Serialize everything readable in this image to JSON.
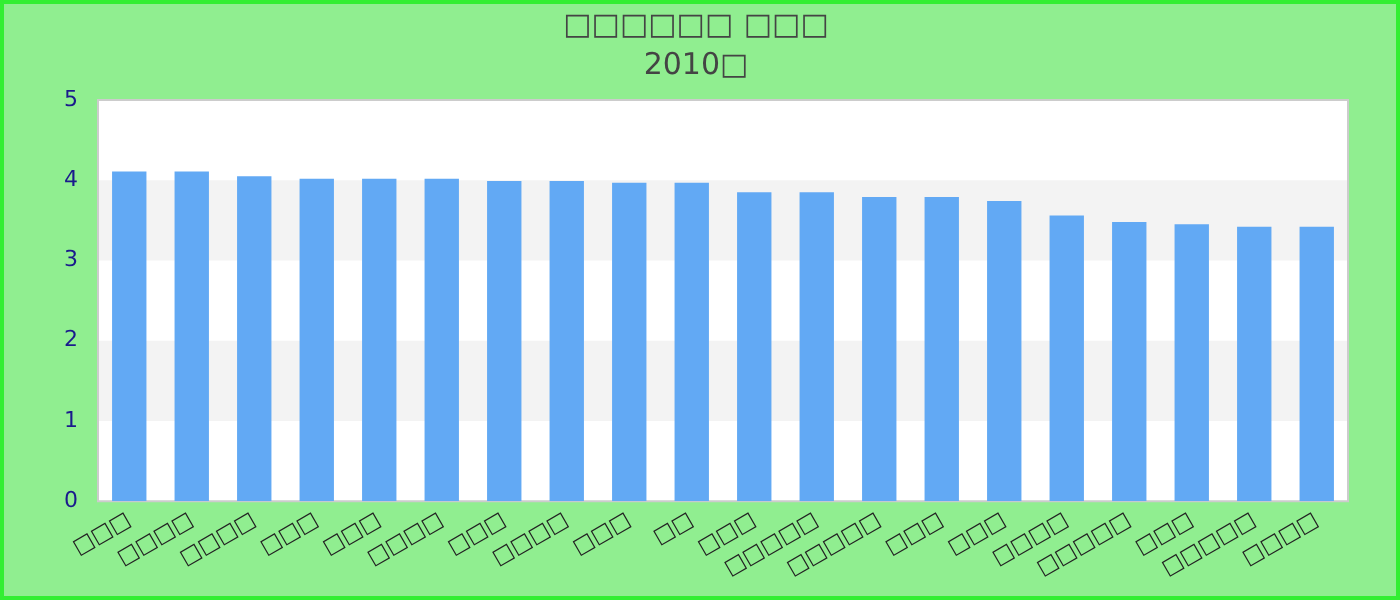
{
  "chart_data": {
    "type": "bar",
    "title": "□□□□□□ □□□",
    "subtitle": "2010□",
    "categories": [
      "□□□",
      "□□□□",
      "□□□□",
      "□□□",
      "□□□",
      "□□□□",
      "□□□",
      "□□□□",
      "□□□",
      "□□",
      "□□□",
      "□□□□□",
      "□□□□□",
      "□□□",
      "□□□",
      "□□□□",
      "□□□□□",
      "□□□",
      "□□□□□",
      "□□□□"
    ],
    "values": [
      4.11,
      4.11,
      4.05,
      4.02,
      4.02,
      4.02,
      3.99,
      3.99,
      3.97,
      3.97,
      3.85,
      3.85,
      3.79,
      3.79,
      3.74,
      3.56,
      3.48,
      3.45,
      3.42,
      3.42
    ],
    "color": "#62a9f4",
    "ylim": [
      0,
      5
    ],
    "yticks": [
      0,
      1,
      2,
      3,
      4,
      5
    ],
    "grid": false,
    "legend": false,
    "bands": [
      {
        "axis": "y",
        "from": 1,
        "to": 2,
        "color": "#f3f3f3"
      },
      {
        "axis": "y",
        "from": 3,
        "to": 4,
        "color": "#f3f3f3"
      }
    ]
  }
}
